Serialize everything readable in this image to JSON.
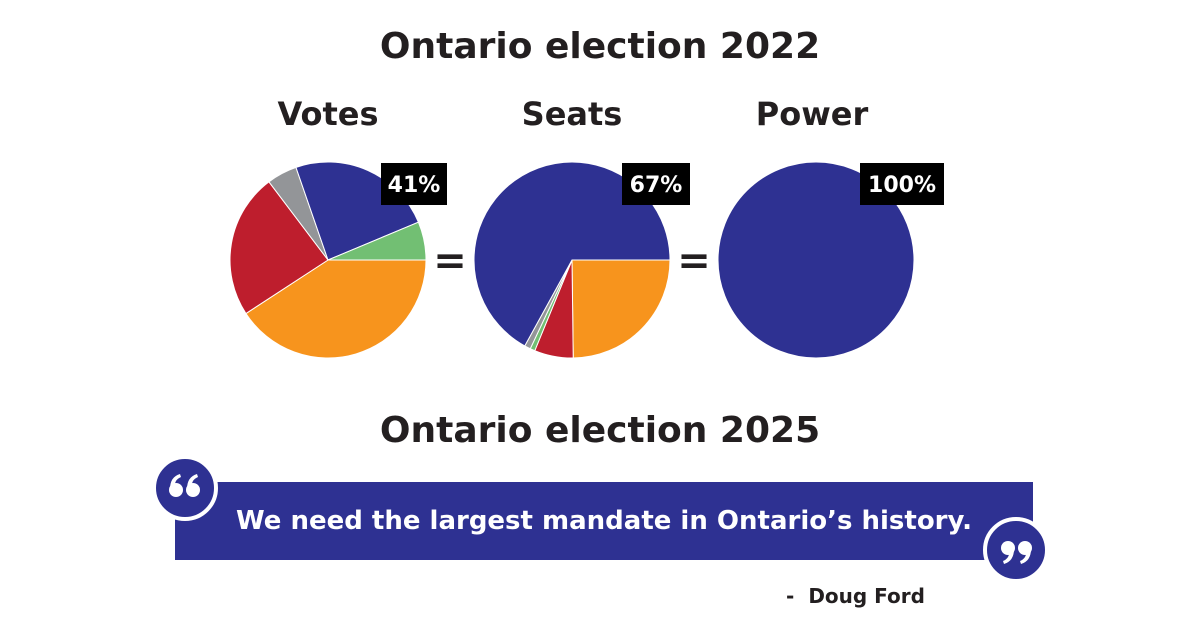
{
  "title_2022": "Ontario election 2022",
  "title_2025": "Ontario election 2025",
  "equals_sign": "=",
  "quote": "We need the largest mandate in Ontario’s history.",
  "attribution_dash": "-",
  "attribution_name": "Doug Ford",
  "colors": {
    "background_blue": "#2e3192",
    "orange": "#f7941d",
    "red": "#be1e2d",
    "gray": "#939598",
    "green": "#72bf73"
  },
  "icons": {
    "open_quote": "open-quote-icon",
    "close_quote": "close-quote-icon"
  },
  "chart_data": [
    {
      "type": "pie",
      "label": "Votes",
      "badge": "41%",
      "slices": [
        {
          "color": "#f7941d",
          "value": 40.8
        },
        {
          "color": "#be1e2d",
          "value": 23.9
        },
        {
          "color": "#939598",
          "value": 5.0
        },
        {
          "color": "#2e3192",
          "value": 24.0
        },
        {
          "color": "#72bf73",
          "value": 6.3
        }
      ]
    },
    {
      "type": "pie",
      "label": "Seats",
      "badge": "67%",
      "slices": [
        {
          "color": "#f7941d",
          "value": 24.8
        },
        {
          "color": "#be1e2d",
          "value": 6.4
        },
        {
          "color": "#72bf73",
          "value": 0.8
        },
        {
          "color": "#939598",
          "value": 1.0
        },
        {
          "color": "#2e3192",
          "value": 67.0
        }
      ]
    },
    {
      "type": "pie",
      "label": "Power",
      "badge": "100%",
      "slices": [
        {
          "color": "#2e3192",
          "value": 100
        }
      ]
    }
  ]
}
